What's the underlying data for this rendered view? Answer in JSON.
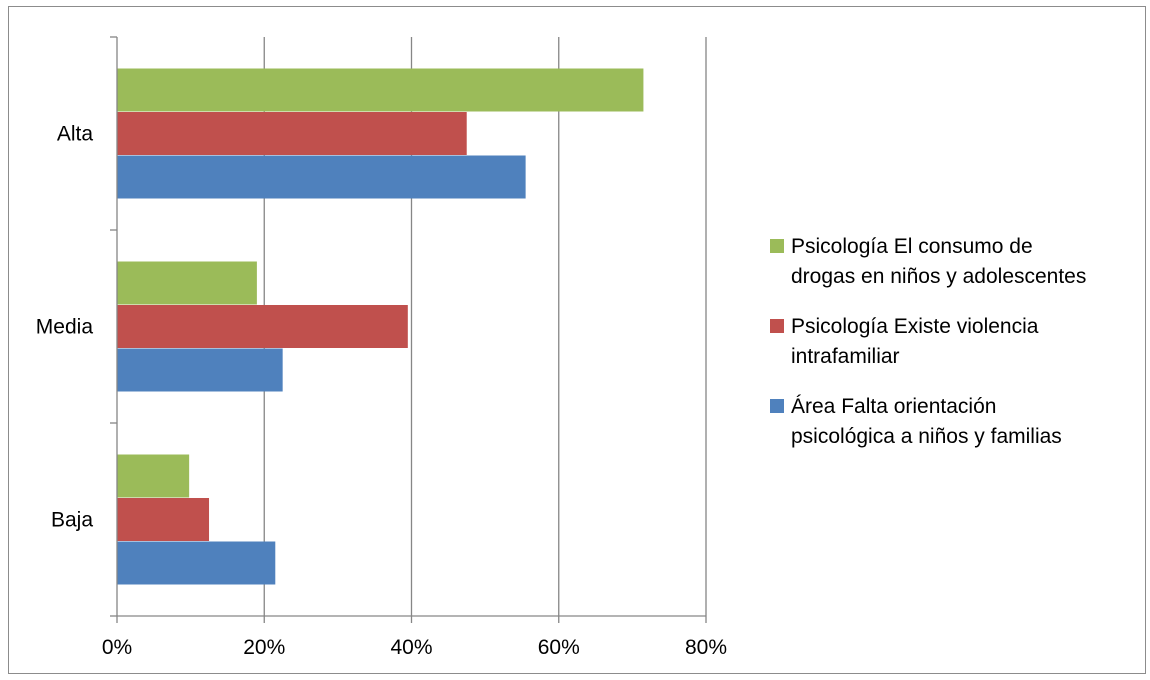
{
  "chart_data": {
    "type": "bar",
    "orientation": "horizontal",
    "categories": [
      "Alta",
      "Media",
      "Baja"
    ],
    "xlim": [
      0,
      80
    ],
    "xticks": [
      "0%",
      "20%",
      "40%",
      "60%",
      "80%"
    ],
    "grid": "vertical",
    "legend_position": "right",
    "series": [
      {
        "name": "Psicología El consumo de drogas en niños y adolescentes",
        "color": "#9bbb59",
        "values": [
          71.5,
          19,
          9.8
        ]
      },
      {
        "name": "Psicología Existe violencia intrafamiliar",
        "color": "#c0504d",
        "values": [
          47.5,
          39.5,
          12.5
        ]
      },
      {
        "name": "Área Falta orientación psicológica a niños y familias",
        "color": "#4f81bd",
        "values": [
          55.5,
          22.5,
          21.5
        ]
      }
    ],
    "legend": [
      {
        "lines": [
          "Psicología El consumo de",
          "drogas en niños y adolescentes"
        ],
        "color": "#9bbb59"
      },
      {
        "lines": [
          "Psicología Existe violencia",
          "intrafamiliar"
        ],
        "color": "#c0504d"
      },
      {
        "lines": [
          "Área Falta orientación",
          "psicológica a niños y familias"
        ],
        "color": "#4f81bd"
      }
    ]
  }
}
